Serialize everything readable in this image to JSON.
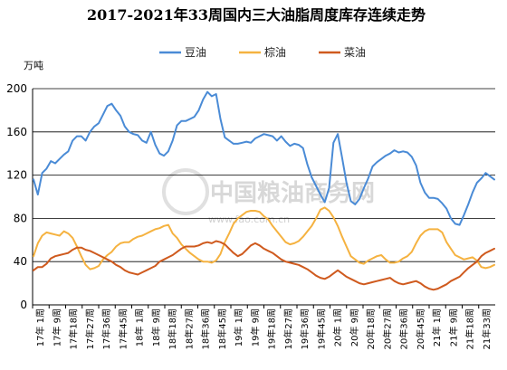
{
  "chart_data": {
    "type": "line",
    "title": "2017-2021年33周国内三大油脂周度库存连续走势",
    "ylabel": "万吨",
    "ylim": [
      0,
      200
    ],
    "yticks": [
      0,
      40,
      80,
      120,
      160,
      200
    ],
    "grid": "horizontal",
    "legend_position": "top",
    "watermark": "中国粮油商务网",
    "watermark_url": "www.fao.com.cn",
    "x_tick_labels": [
      "17年 1周",
      "17年 9周",
      "17年18周",
      "17年27周",
      "17年36周",
      "17年45周",
      "18年 1周",
      "18年 9周",
      "18年18周",
      "18年27周",
      "18年36周",
      "18年45周",
      "19年 1周",
      "19年 9周",
      "19年18周",
      "19年27周",
      "19年36周",
      "19年45周",
      "20年 1周",
      "20年 9周",
      "20年18周",
      "20年27周",
      "20年36周",
      "20年45周",
      "21年 1周",
      "21年 9周",
      "21年18周",
      "21年33周"
    ],
    "series": [
      {
        "name": "豆油",
        "color": "#4a8bd6",
        "values": [
          116,
          102,
          122,
          126,
          133,
          131,
          135,
          139,
          142,
          152,
          156,
          156,
          152,
          160,
          165,
          168,
          176,
          184,
          186,
          180,
          175,
          165,
          160,
          158,
          157,
          152,
          150,
          160,
          148,
          140,
          138,
          142,
          152,
          166,
          170,
          170,
          172,
          174,
          180,
          190,
          197,
          193,
          195,
          172,
          155,
          152,
          149,
          149,
          150,
          151,
          150,
          154,
          156,
          158,
          157,
          156,
          152,
          156,
          151,
          147,
          149,
          148,
          145,
          130,
          118,
          110,
          102,
          95,
          108,
          150,
          158,
          136,
          113,
          96,
          93,
          98,
          108,
          117,
          128,
          132,
          135,
          138,
          140,
          143,
          141,
          142,
          141,
          137,
          129,
          113,
          104,
          99,
          99,
          98,
          94,
          89,
          80,
          75,
          74,
          83,
          93,
          104,
          113,
          117,
          122,
          119,
          116
        ]
      },
      {
        "name": "棕油",
        "color": "#f5b240",
        "values": [
          45,
          57,
          64,
          67,
          66,
          65,
          64,
          68,
          66,
          62,
          54,
          45,
          37,
          33,
          34,
          36,
          42,
          46,
          49,
          54,
          57,
          58,
          58,
          61,
          63,
          64,
          66,
          68,
          70,
          71,
          73,
          74,
          66,
          62,
          56,
          52,
          48,
          45,
          42,
          40,
          40,
          39,
          41,
          47,
          58,
          66,
          75,
          80,
          83,
          86,
          87,
          87,
          86,
          82,
          79,
          73,
          68,
          63,
          58,
          56,
          57,
          59,
          63,
          68,
          73,
          80,
          88,
          90,
          87,
          81,
          73,
          63,
          54,
          45,
          42,
          39,
          38,
          41,
          43,
          45,
          46,
          42,
          39,
          39,
          40,
          43,
          45,
          49,
          57,
          64,
          68,
          70,
          70,
          70,
          67,
          58,
          52,
          46,
          44,
          42,
          43,
          44,
          41,
          35,
          34,
          35,
          37
        ]
      },
      {
        "name": "菜油",
        "color": "#cf5a1e",
        "values": [
          32,
          35,
          35,
          38,
          43,
          45,
          46,
          47,
          48,
          51,
          53,
          53,
          51,
          50,
          48,
          46,
          44,
          42,
          40,
          37,
          35,
          32,
          30,
          29,
          28,
          30,
          32,
          34,
          36,
          40,
          42,
          44,
          46,
          49,
          52,
          54,
          54,
          54,
          55,
          57,
          58,
          57,
          59,
          58,
          56,
          52,
          48,
          45,
          47,
          51,
          55,
          57,
          55,
          52,
          50,
          48,
          45,
          42,
          40,
          39,
          38,
          37,
          35,
          33,
          30,
          27,
          25,
          24,
          26,
          29,
          32,
          29,
          26,
          24,
          22,
          20,
          19,
          20,
          21,
          22,
          23,
          24,
          25,
          22,
          20,
          19,
          20,
          21,
          22,
          20,
          17,
          15,
          14,
          15,
          17,
          19,
          22,
          24,
          26,
          30,
          34,
          37,
          40,
          45,
          48,
          50,
          52
        ]
      }
    ]
  }
}
